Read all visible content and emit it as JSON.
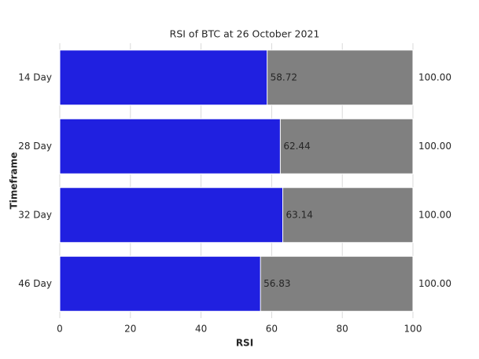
{
  "chart_data": {
    "type": "bar",
    "orientation": "horizontal",
    "title": "RSI of BTC at 26 October 2021",
    "x_label": "RSI",
    "y_label": "Timeframe",
    "categories": [
      "14 Day",
      "28 Day",
      "32 Day",
      "46 Day"
    ],
    "series": [
      {
        "color": "#808080",
        "values": [
          100,
          100,
          100,
          100
        ],
        "value_labels": [
          "100.00",
          "100.00",
          "100.00",
          "100.00"
        ]
      },
      {
        "color": "#2020e0",
        "values": [
          58.72,
          62.44,
          63.14,
          56.83
        ]
      }
    ],
    "xlim": [
      0,
      100
    ],
    "xticks": [
      0,
      20,
      40,
      60,
      80,
      100
    ],
    "grid": true
  }
}
